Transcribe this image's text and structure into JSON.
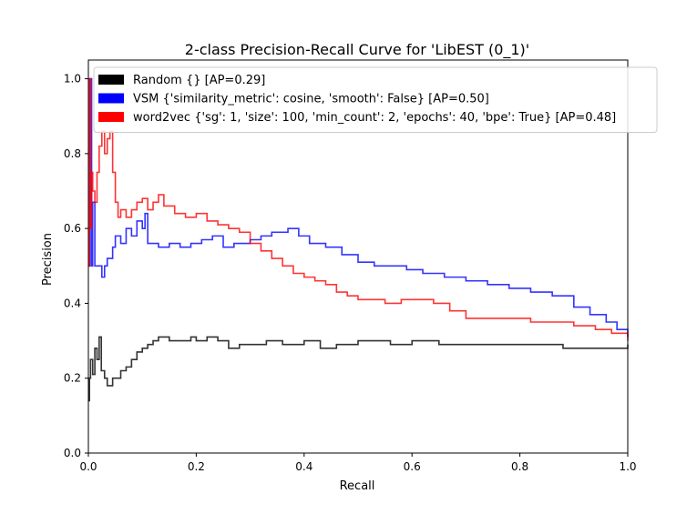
{
  "chart_data": {
    "type": "line",
    "title": "2-class Precision-Recall Curve for 'LibEST (0_1)'",
    "xlabel": "Recall",
    "ylabel": "Precision",
    "xlim": [
      0.0,
      1.0
    ],
    "ylim": [
      0.0,
      1.05
    ],
    "x_ticks": [
      "0.0",
      "0.2",
      "0.4",
      "0.6",
      "0.8",
      "1.0"
    ],
    "y_ticks": [
      "0.0",
      "0.2",
      "0.4",
      "0.6",
      "0.8",
      "1.0"
    ],
    "grid": false,
    "legend_position": "top-left",
    "step": true,
    "series": [
      {
        "name": "Random {} [AP=0.29]",
        "color": "#000000",
        "points": [
          [
            0.0,
            0.14
          ],
          [
            0.002,
            0.2
          ],
          [
            0.004,
            0.25
          ],
          [
            0.008,
            0.21
          ],
          [
            0.012,
            0.28
          ],
          [
            0.016,
            0.25
          ],
          [
            0.02,
            0.31
          ],
          [
            0.024,
            0.22
          ],
          [
            0.03,
            0.2
          ],
          [
            0.035,
            0.18
          ],
          [
            0.045,
            0.2
          ],
          [
            0.06,
            0.22
          ],
          [
            0.07,
            0.23
          ],
          [
            0.08,
            0.25
          ],
          [
            0.09,
            0.27
          ],
          [
            0.1,
            0.28
          ],
          [
            0.11,
            0.29
          ],
          [
            0.12,
            0.3
          ],
          [
            0.13,
            0.31
          ],
          [
            0.15,
            0.3
          ],
          [
            0.17,
            0.3
          ],
          [
            0.19,
            0.31
          ],
          [
            0.2,
            0.3
          ],
          [
            0.22,
            0.31
          ],
          [
            0.24,
            0.3
          ],
          [
            0.26,
            0.28
          ],
          [
            0.28,
            0.29
          ],
          [
            0.3,
            0.29
          ],
          [
            0.33,
            0.3
          ],
          [
            0.36,
            0.29
          ],
          [
            0.4,
            0.3
          ],
          [
            0.43,
            0.28
          ],
          [
            0.46,
            0.29
          ],
          [
            0.5,
            0.3
          ],
          [
            0.53,
            0.3
          ],
          [
            0.56,
            0.29
          ],
          [
            0.6,
            0.3
          ],
          [
            0.65,
            0.29
          ],
          [
            0.7,
            0.29
          ],
          [
            0.75,
            0.29
          ],
          [
            0.8,
            0.29
          ],
          [
            0.85,
            0.29
          ],
          [
            0.88,
            0.28
          ],
          [
            0.92,
            0.28
          ],
          [
            0.96,
            0.28
          ],
          [
            1.0,
            0.29
          ]
        ]
      },
      {
        "name": "VSM {'similarity_metric': cosine, 'smooth': False} [AP=0.50]",
        "color": "#0000ff",
        "points": [
          [
            0.0,
            0.5
          ],
          [
            0.003,
            1.0
          ],
          [
            0.006,
            0.5
          ],
          [
            0.008,
            0.67
          ],
          [
            0.012,
            0.5
          ],
          [
            0.016,
            0.5
          ],
          [
            0.02,
            0.5
          ],
          [
            0.025,
            0.47
          ],
          [
            0.03,
            0.5
          ],
          [
            0.035,
            0.52
          ],
          [
            0.04,
            0.52
          ],
          [
            0.045,
            0.55
          ],
          [
            0.05,
            0.58
          ],
          [
            0.06,
            0.56
          ],
          [
            0.07,
            0.6
          ],
          [
            0.08,
            0.58
          ],
          [
            0.09,
            0.62
          ],
          [
            0.1,
            0.6
          ],
          [
            0.105,
            0.64
          ],
          [
            0.11,
            0.56
          ],
          [
            0.13,
            0.55
          ],
          [
            0.15,
            0.56
          ],
          [
            0.17,
            0.55
          ],
          [
            0.19,
            0.56
          ],
          [
            0.21,
            0.57
          ],
          [
            0.23,
            0.58
          ],
          [
            0.25,
            0.55
          ],
          [
            0.27,
            0.56
          ],
          [
            0.3,
            0.57
          ],
          [
            0.32,
            0.58
          ],
          [
            0.34,
            0.59
          ],
          [
            0.37,
            0.6
          ],
          [
            0.39,
            0.58
          ],
          [
            0.41,
            0.56
          ],
          [
            0.44,
            0.55
          ],
          [
            0.47,
            0.53
          ],
          [
            0.5,
            0.51
          ],
          [
            0.53,
            0.5
          ],
          [
            0.56,
            0.5
          ],
          [
            0.59,
            0.49
          ],
          [
            0.62,
            0.48
          ],
          [
            0.66,
            0.47
          ],
          [
            0.7,
            0.46
          ],
          [
            0.74,
            0.45
          ],
          [
            0.78,
            0.44
          ],
          [
            0.82,
            0.43
          ],
          [
            0.86,
            0.42
          ],
          [
            0.9,
            0.39
          ],
          [
            0.93,
            0.37
          ],
          [
            0.96,
            0.35
          ],
          [
            0.98,
            0.33
          ],
          [
            1.0,
            0.31
          ]
        ]
      },
      {
        "name": "word2vec {'sg': 1, 'size': 100, 'min_count': 2, 'epochs': 40, 'bpe': True} [AP=0.48]",
        "color": "#ff0000",
        "points": [
          [
            0.0,
            0.5
          ],
          [
            0.002,
            1.0
          ],
          [
            0.004,
            0.6
          ],
          [
            0.006,
            0.75
          ],
          [
            0.008,
            0.7
          ],
          [
            0.012,
            0.67
          ],
          [
            0.016,
            0.75
          ],
          [
            0.02,
            0.82
          ],
          [
            0.025,
            0.86
          ],
          [
            0.03,
            0.8
          ],
          [
            0.035,
            0.84
          ],
          [
            0.04,
            0.86
          ],
          [
            0.045,
            0.75
          ],
          [
            0.05,
            0.67
          ],
          [
            0.055,
            0.63
          ],
          [
            0.06,
            0.65
          ],
          [
            0.07,
            0.63
          ],
          [
            0.08,
            0.65
          ],
          [
            0.09,
            0.67
          ],
          [
            0.1,
            0.68
          ],
          [
            0.11,
            0.65
          ],
          [
            0.12,
            0.67
          ],
          [
            0.13,
            0.69
          ],
          [
            0.14,
            0.66
          ],
          [
            0.16,
            0.64
          ],
          [
            0.18,
            0.63
          ],
          [
            0.2,
            0.64
          ],
          [
            0.22,
            0.62
          ],
          [
            0.24,
            0.61
          ],
          [
            0.26,
            0.6
          ],
          [
            0.28,
            0.59
          ],
          [
            0.3,
            0.56
          ],
          [
            0.32,
            0.54
          ],
          [
            0.34,
            0.52
          ],
          [
            0.36,
            0.5
          ],
          [
            0.38,
            0.48
          ],
          [
            0.4,
            0.47
          ],
          [
            0.42,
            0.46
          ],
          [
            0.44,
            0.45
          ],
          [
            0.46,
            0.43
          ],
          [
            0.48,
            0.42
          ],
          [
            0.5,
            0.41
          ],
          [
            0.52,
            0.41
          ],
          [
            0.55,
            0.4
          ],
          [
            0.58,
            0.41
          ],
          [
            0.61,
            0.41
          ],
          [
            0.64,
            0.4
          ],
          [
            0.67,
            0.38
          ],
          [
            0.7,
            0.36
          ],
          [
            0.74,
            0.36
          ],
          [
            0.78,
            0.36
          ],
          [
            0.82,
            0.35
          ],
          [
            0.86,
            0.35
          ],
          [
            0.9,
            0.34
          ],
          [
            0.94,
            0.33
          ],
          [
            0.97,
            0.32
          ],
          [
            1.0,
            0.3
          ]
        ]
      }
    ]
  }
}
